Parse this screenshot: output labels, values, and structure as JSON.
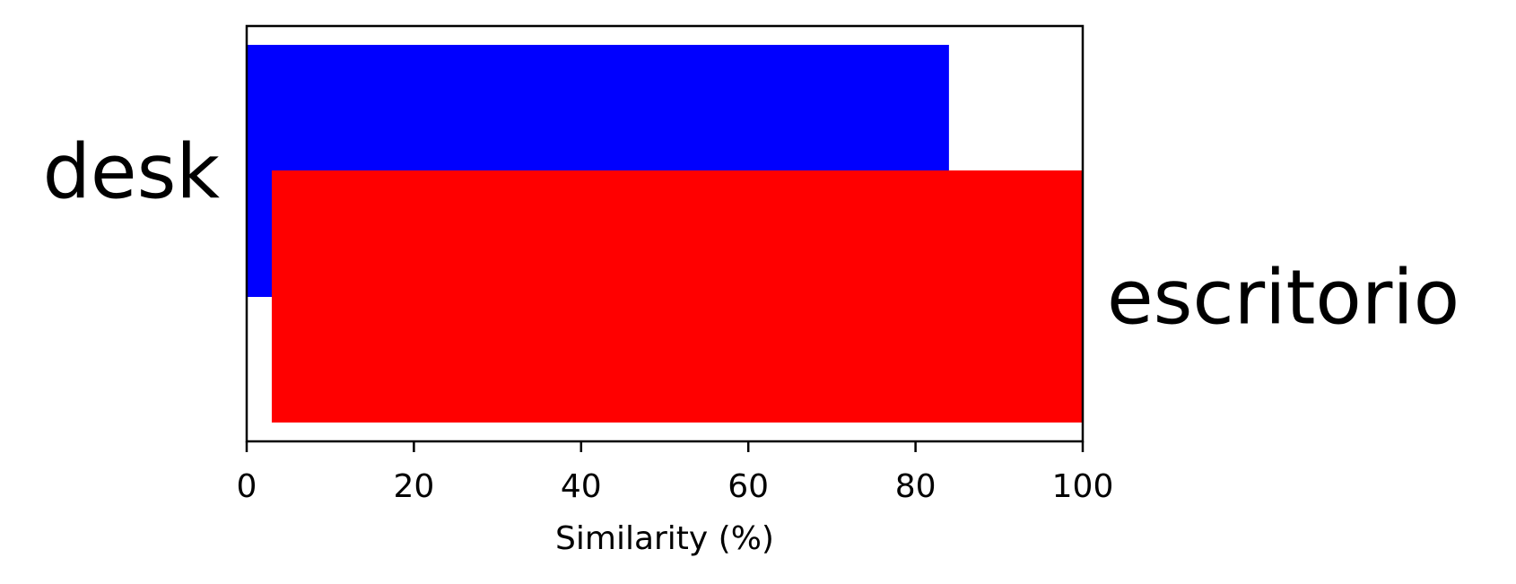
{
  "chart_data": {
    "type": "bar",
    "orientation": "horizontal",
    "title": "",
    "xlabel": "Similarity (%)",
    "ylabel": "",
    "xlim": [
      0,
      100
    ],
    "xticks": [
      0,
      20,
      40,
      60,
      80,
      100
    ],
    "xtick_labels": [
      "0",
      "20",
      "40",
      "60",
      "80",
      "100"
    ],
    "grid": false,
    "legend": "none",
    "bars": [
      {
        "label": "desk",
        "label_side": "left",
        "start": 0,
        "end": 84,
        "color": "#0000ff"
      },
      {
        "label": "escritorio",
        "label_side": "right",
        "start": 3,
        "end": 100,
        "color": "#ff0000"
      }
    ]
  }
}
